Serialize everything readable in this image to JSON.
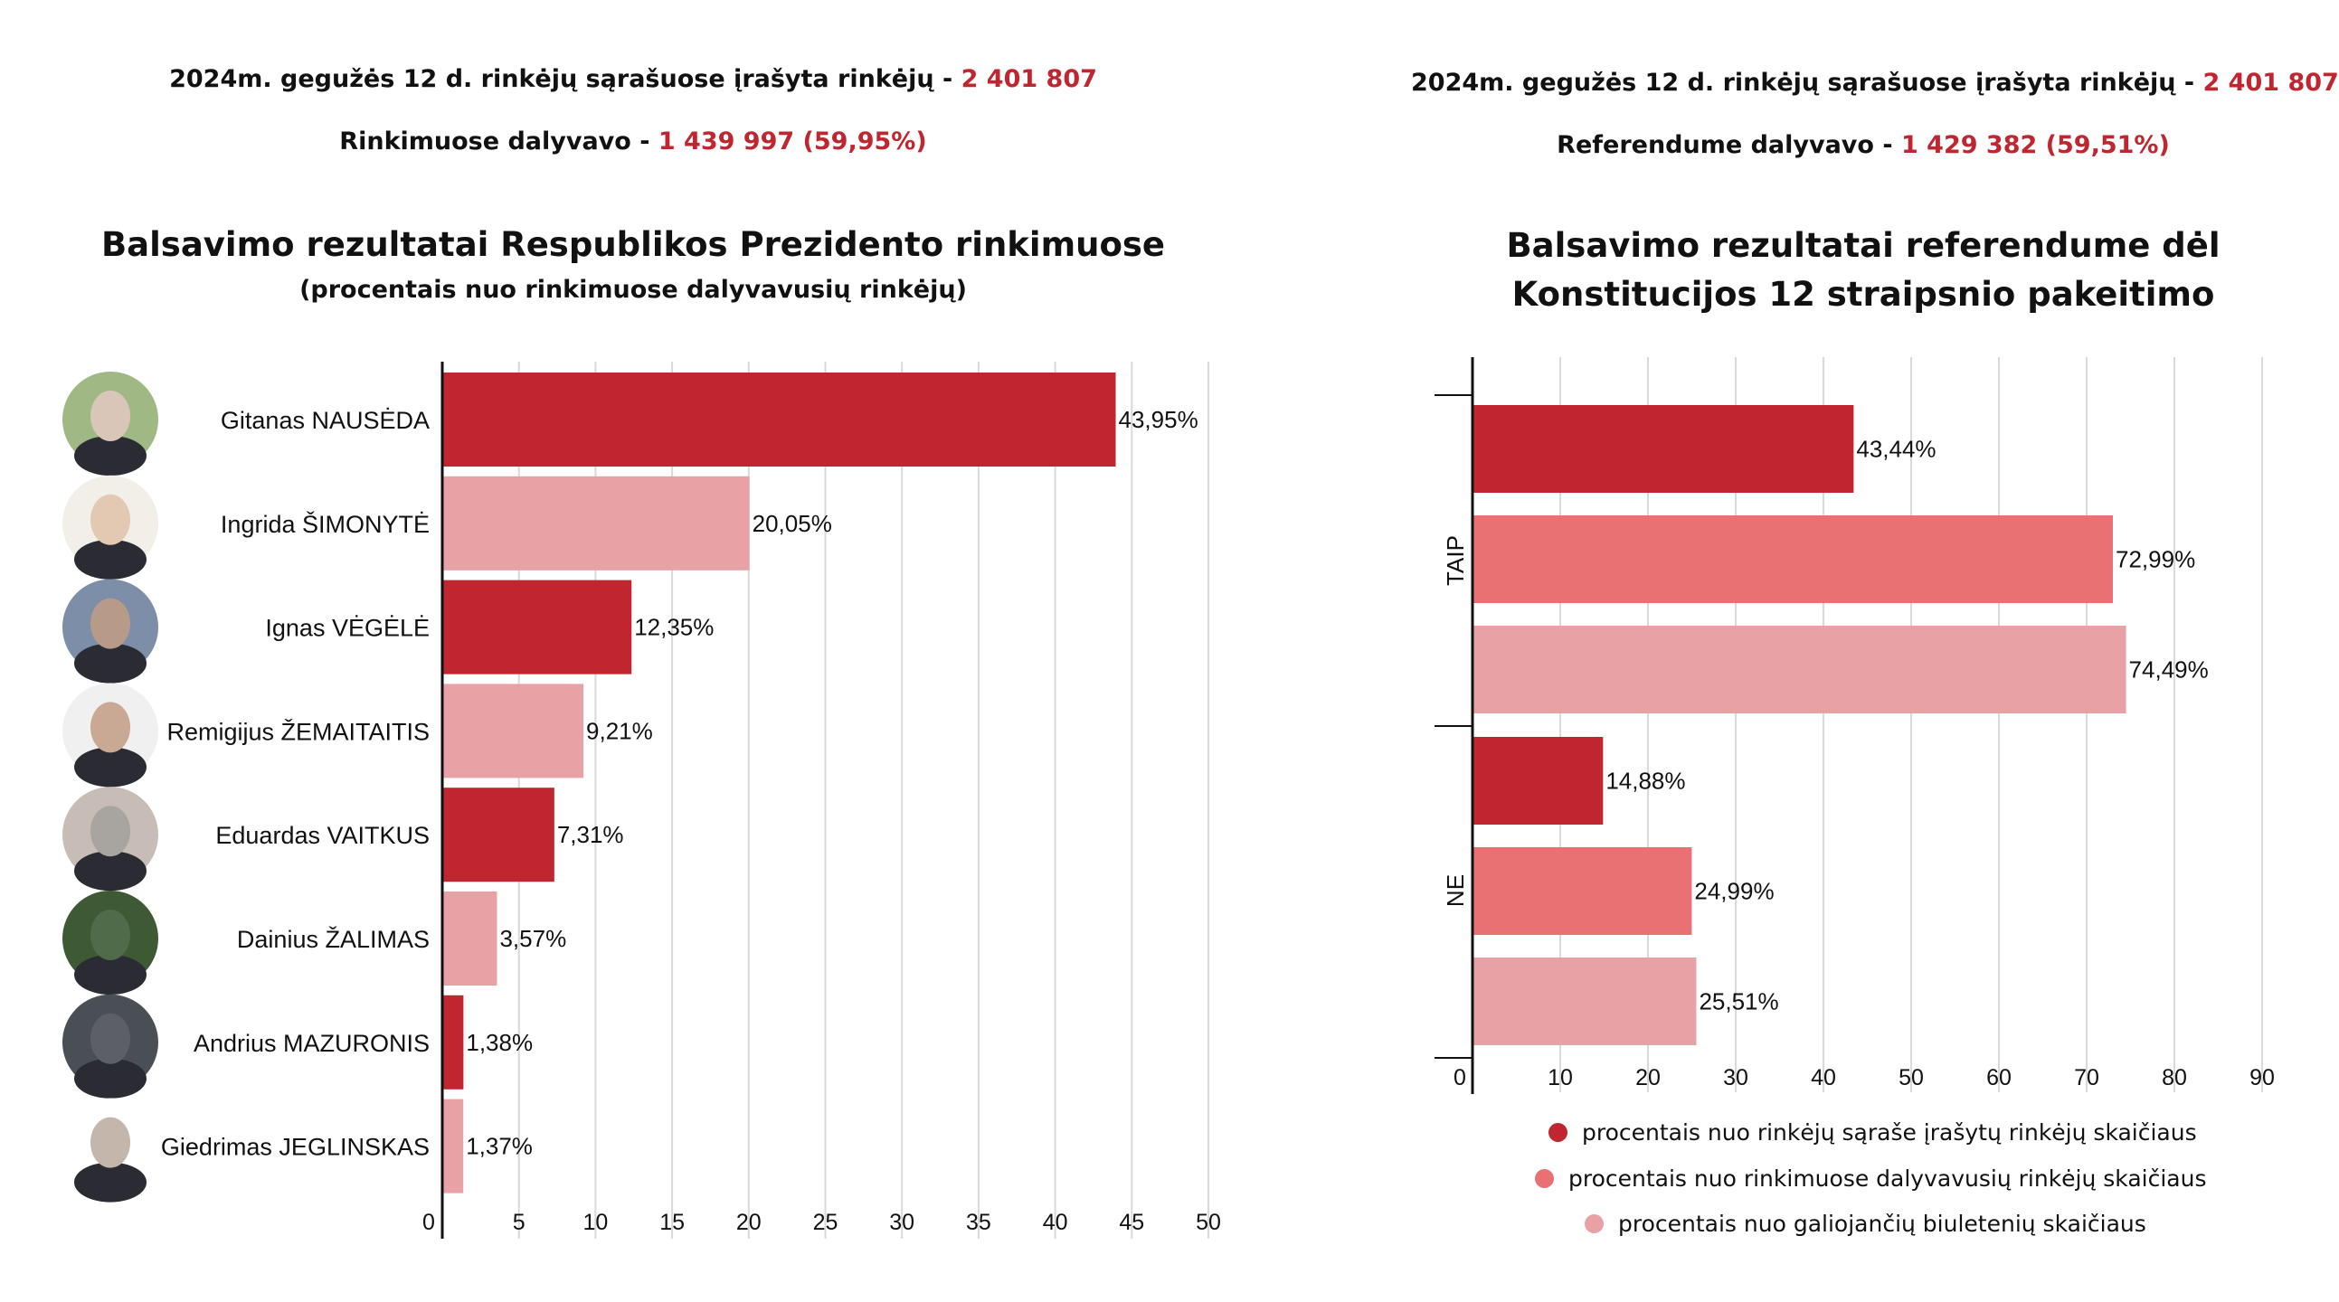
{
  "left": {
    "header1_text": "2024m. gegužės 12 d. rinkėjų sąrašuose įrašyta rinkėjų - ",
    "header1_value": "2 401 807",
    "header2_text": "Rinkimuose dalyvavo - ",
    "header2_value": "1 439 997 (59,95%)",
    "title": "Balsavimo rezultatai Respublikos Prezidento rinkimuose",
    "subtitle": "(procentais nuo rinkimuose dalyvavusių rinkėjų)"
  },
  "right": {
    "header1_text": "2024m. gegužės 12 d. rinkėjų sąrašuose įrašyta rinkėjų - ",
    "header1_value": "2 401 807",
    "header2_text": "Referendume dalyvavo - ",
    "header2_value": "1 429 382 (59,51%)",
    "title_line1": "Balsavimo rezultatai referendume dėl",
    "title_line2": "Konstitucijos 12 straipsnio pakeitimo"
  },
  "colors": {
    "dark_red": "#c0262f",
    "medium_red": "#e97073",
    "light_pink": "#e8a1a4",
    "accent_text": "#c0262f"
  },
  "icons": [
    "candidate-portrait"
  ],
  "chart_data": [
    {
      "type": "bar",
      "orientation": "horizontal",
      "categories": [
        "Gitanas NAUSĖDA",
        "Ingrida ŠIMONYTĖ",
        "Ignas VĖGĖLĖ",
        "Remigijus ŽEMAITAITIS",
        "Eduardas VAITKUS",
        "Dainius ŽALIMAS",
        "Andrius MAZURONIS",
        "Giedrimas JEGLINSKAS"
      ],
      "values": [
        43.95,
        20.05,
        12.35,
        9.21,
        7.31,
        3.57,
        1.38,
        1.37
      ],
      "value_labels": [
        "43,95%",
        "20,05%",
        "12,35%",
        "9,21%",
        "7,31%",
        "3,57%",
        "1,38%",
        "1,37%"
      ],
      "bar_colors": [
        "#c0262f",
        "#e8a1a4",
        "#c0262f",
        "#e8a1a4",
        "#c0262f",
        "#e8a1a4",
        "#c0262f",
        "#e8a1a4"
      ],
      "xlim": [
        0,
        50
      ],
      "xticks": [
        0,
        5,
        10,
        15,
        20,
        25,
        30,
        35,
        40,
        45,
        50
      ],
      "grid": true
    },
    {
      "type": "bar",
      "orientation": "horizontal",
      "categories": [
        "TAIP",
        "NE"
      ],
      "series": [
        {
          "name": "procentais nuo rinkėjų sąraše įrašytų rinkėjų skaičiaus",
          "color": "#c0262f",
          "values": [
            43.44,
            14.88
          ],
          "value_labels": [
            "43,44%",
            "14,88%"
          ]
        },
        {
          "name": "procentais nuo rinkimuose dalyvavusių rinkėjų skaičiaus",
          "color": "#e97073",
          "values": [
            72.99,
            24.99
          ],
          "value_labels": [
            "72,99%",
            "24,99%"
          ]
        },
        {
          "name": "procentais nuo galiojančių biuletenių skaičiaus",
          "color": "#e8a1a4",
          "values": [
            74.49,
            25.51
          ],
          "value_labels": [
            "74,49%",
            "25,51%"
          ]
        }
      ],
      "xlim": [
        0,
        90
      ],
      "xticks": [
        0,
        10,
        20,
        30,
        40,
        50,
        60,
        70,
        80,
        90
      ],
      "grid": true,
      "legend_position": "bottom"
    }
  ]
}
